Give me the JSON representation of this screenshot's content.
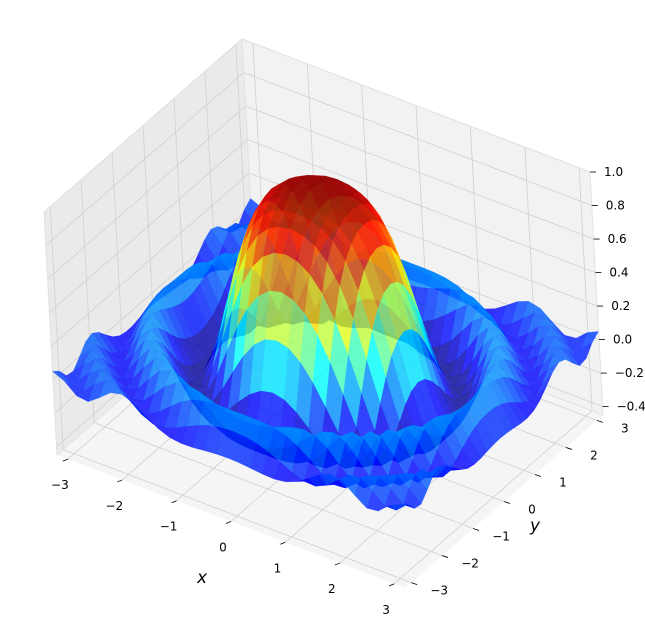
{
  "chart_data": {
    "type": "surface3d",
    "function": "sin(x^2 + y^2) / (x^2 + y^2)",
    "colormap": "jet",
    "surface_alpha": 0.8,
    "x_range": [
      -3.2,
      3.2
    ],
    "y_range": [
      -3.2,
      3.2
    ],
    "grid_steps": 31,
    "xlabel": "x",
    "ylabel": "y",
    "zlabel": "",
    "xlim": [
      -3.2,
      3.2
    ],
    "ylim": [
      -3.2,
      3.2
    ],
    "zlim": [
      -0.45,
      1.0
    ],
    "xticks": [
      "−3",
      "−2",
      "−1",
      "0",
      "1",
      "2",
      "3"
    ],
    "yticks": [
      "−3",
      "−2",
      "−1",
      "0",
      "1",
      "2",
      "3"
    ],
    "zticks": [
      "−0.4",
      "−0.2",
      "0.0",
      "0.2",
      "0.4",
      "0.6",
      "0.8",
      "1.0"
    ],
    "xtick_values": [
      -3,
      -2,
      -1,
      0,
      1,
      2,
      3
    ],
    "ytick_values": [
      -3,
      -2,
      -1,
      0,
      1,
      2,
      3
    ],
    "ztick_values": [
      -0.4,
      -0.2,
      0.0,
      0.2,
      0.4,
      0.6,
      0.8,
      1.0
    ],
    "grid": true,
    "pane_color": "#f2f2f2",
    "grid_color": "#d0d0d0"
  }
}
